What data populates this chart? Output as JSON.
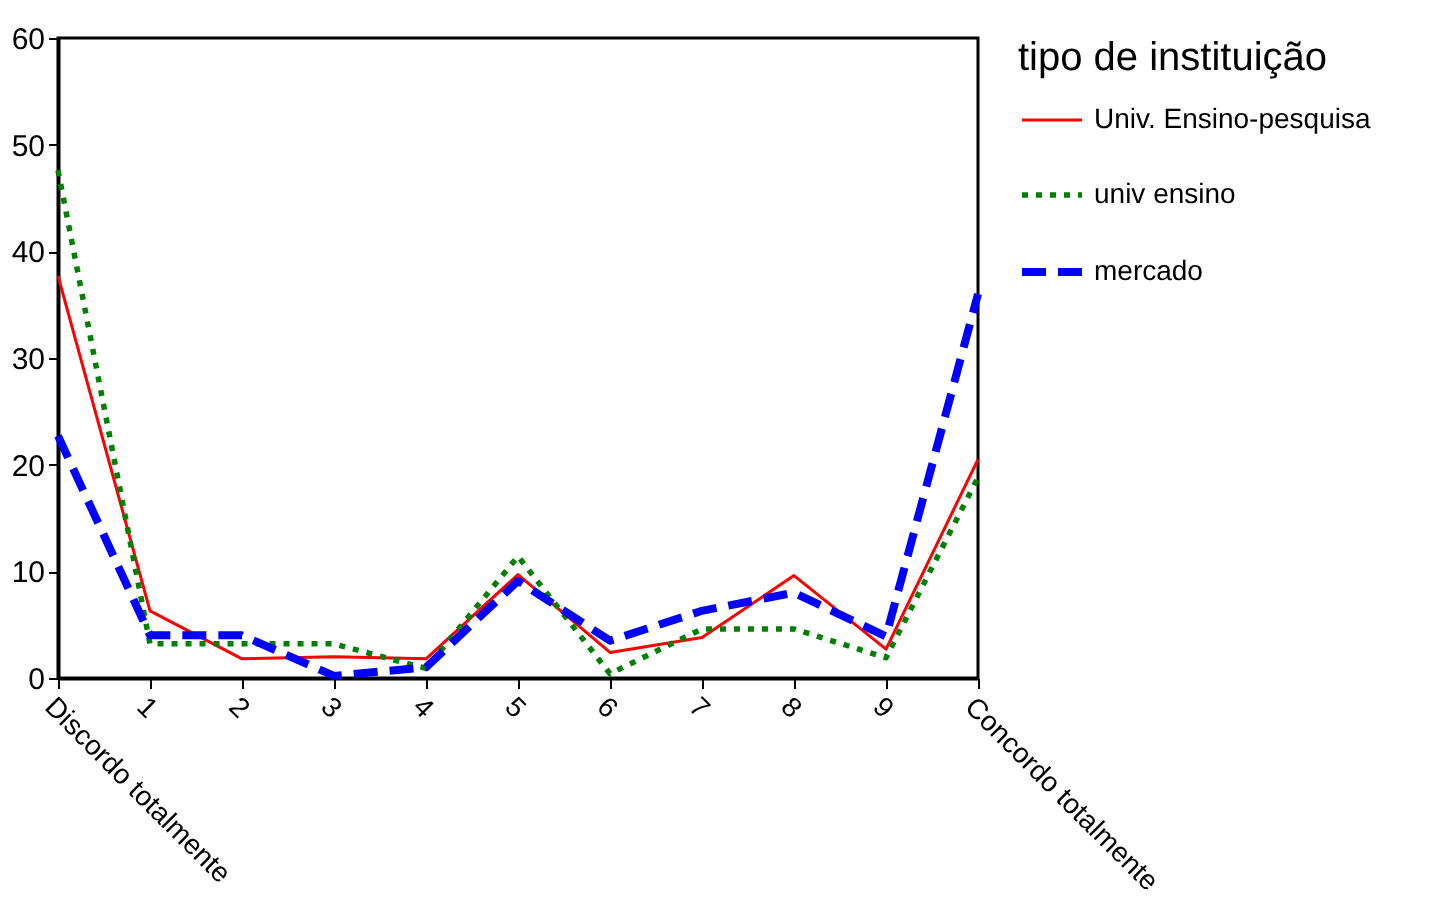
{
  "chart_data": {
    "type": "line",
    "legend_title": "tipo de instituição",
    "legend": "right",
    "grid": false,
    "categories": [
      "Discordo totalmente",
      "1",
      "2",
      "3",
      "4",
      "5",
      "6",
      "7",
      "8",
      "9",
      "Concordo totalmente"
    ],
    "ylim": [
      0,
      60
    ],
    "yticks": [
      0,
      10,
      20,
      30,
      40,
      50,
      60
    ],
    "series": [
      {
        "name": "Univ. Ensino-pesquisa",
        "color": "#ff0000",
        "line_style": "solid",
        "values": [
          37.7,
          6.3,
          1.8,
          2,
          1.8,
          9.7,
          2.4,
          3.8,
          9.6,
          2.7,
          20.5
        ]
      },
      {
        "name": "univ ensino",
        "color": "#008000",
        "line_style": "dotted",
        "values": [
          47.6,
          3.2,
          3.2,
          3.2,
          0.9,
          11.4,
          0.4,
          4.6,
          4.6,
          1.9,
          18.8
        ]
      },
      {
        "name": "mercado",
        "color": "#0000ff",
        "line_style": "dashed",
        "values": [
          22.7,
          4.0,
          4.0,
          0.2,
          1.0,
          9.1,
          3.5,
          6.3,
          8.0,
          3.9,
          36.0
        ]
      }
    ]
  }
}
